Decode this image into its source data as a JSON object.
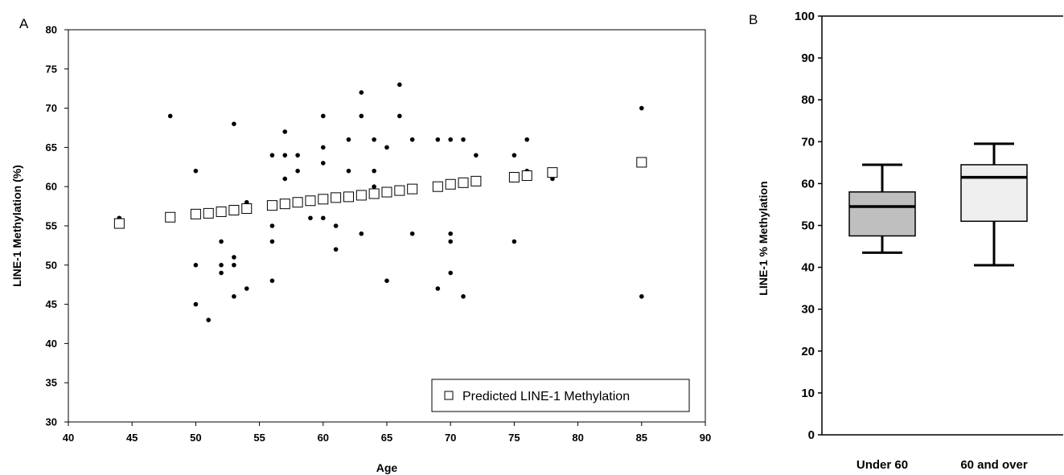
{
  "chart_data": [
    {
      "panel_label": "A",
      "type": "scatter",
      "xlabel": "Age",
      "ylabel": "LINE-1 Methylation (%)",
      "xlim": [
        40,
        90
      ],
      "ylim": [
        30,
        80
      ],
      "xticks": [
        "40",
        "45",
        "50",
        "55",
        "60",
        "65",
        "70",
        "75",
        "80",
        "85",
        "90"
      ],
      "yticks": [
        "30",
        "35",
        "40",
        "45",
        "50",
        "55",
        "60",
        "65",
        "70",
        "75",
        "80"
      ],
      "grid": false,
      "legend_position": "bottom-right",
      "series": [
        {
          "marker": "filled-circle",
          "points": [
            [
              44,
              56
            ],
            [
              48,
              69
            ],
            [
              50,
              62
            ],
            [
              50,
              50
            ],
            [
              50,
              45
            ],
            [
              51,
              43
            ],
            [
              52,
              53
            ],
            [
              52,
              50
            ],
            [
              52,
              49
            ],
            [
              53,
              68
            ],
            [
              53,
              51
            ],
            [
              53,
              50
            ],
            [
              53,
              46
            ],
            [
              54,
              58
            ],
            [
              54,
              47
            ],
            [
              56,
              64
            ],
            [
              56,
              55
            ],
            [
              56,
              53
            ],
            [
              56,
              48
            ],
            [
              57,
              67
            ],
            [
              57,
              64
            ],
            [
              57,
              61
            ],
            [
              58,
              64
            ],
            [
              58,
              62
            ],
            [
              59,
              56
            ],
            [
              60,
              69
            ],
            [
              60,
              65
            ],
            [
              60,
              63
            ],
            [
              60,
              56
            ],
            [
              61,
              55
            ],
            [
              61,
              52
            ],
            [
              62,
              66
            ],
            [
              62,
              62
            ],
            [
              63,
              72
            ],
            [
              63,
              69
            ],
            [
              63,
              54
            ],
            [
              64,
              66
            ],
            [
              64,
              62
            ],
            [
              64,
              60
            ],
            [
              65,
              65
            ],
            [
              65,
              48
            ],
            [
              66,
              73
            ],
            [
              66,
              69
            ],
            [
              67,
              66
            ],
            [
              67,
              60
            ],
            [
              67,
              54
            ],
            [
              69,
              66
            ],
            [
              69,
              47
            ],
            [
              70,
              66
            ],
            [
              70,
              54
            ],
            [
              70,
              53
            ],
            [
              70,
              49
            ],
            [
              71,
              66
            ],
            [
              71,
              46
            ],
            [
              72,
              64
            ],
            [
              75,
              64
            ],
            [
              75,
              53
            ],
            [
              76,
              66
            ],
            [
              76,
              62
            ],
            [
              78,
              61
            ],
            [
              85,
              70
            ],
            [
              85,
              46
            ]
          ]
        },
        {
          "name": "Predicted LINE-1 Methylation",
          "marker": "open-square",
          "points": [
            [
              44,
              55.3
            ],
            [
              48,
              56.1
            ],
            [
              50,
              56.5
            ],
            [
              51,
              56.6
            ],
            [
              52,
              56.8
            ],
            [
              53,
              57.0
            ],
            [
              54,
              57.2
            ],
            [
              56,
              57.6
            ],
            [
              57,
              57.8
            ],
            [
              58,
              58.0
            ],
            [
              59,
              58.2
            ],
            [
              60,
              58.4
            ],
            [
              61,
              58.6
            ],
            [
              62,
              58.7
            ],
            [
              63,
              58.9
            ],
            [
              64,
              59.1
            ],
            [
              65,
              59.3
            ],
            [
              66,
              59.5
            ],
            [
              67,
              59.7
            ],
            [
              69,
              60.0
            ],
            [
              70,
              60.3
            ],
            [
              71,
              60.5
            ],
            [
              72,
              60.7
            ],
            [
              75,
              61.2
            ],
            [
              76,
              61.4
            ],
            [
              78,
              61.8
            ],
            [
              85,
              63.1
            ]
          ]
        }
      ]
    },
    {
      "panel_label": "B",
      "type": "boxplot",
      "ylabel": "LINE-1 % Methylation",
      "ylim": [
        0,
        100
      ],
      "yticks": [
        "0",
        "10",
        "20",
        "30",
        "40",
        "50",
        "60",
        "70",
        "80",
        "90",
        "100"
      ],
      "categories": [
        "Under 60",
        "60 and over"
      ],
      "boxes": [
        {
          "whisker_low": 43.5,
          "q1": 47.5,
          "median": 54.5,
          "q3": 58,
          "whisker_high": 64.5,
          "color": "#bfbfbf"
        },
        {
          "whisker_low": 40.5,
          "q1": 51,
          "median": 61.5,
          "q3": 64.5,
          "whisker_high": 69.5,
          "color": "#efefef"
        }
      ]
    }
  ]
}
